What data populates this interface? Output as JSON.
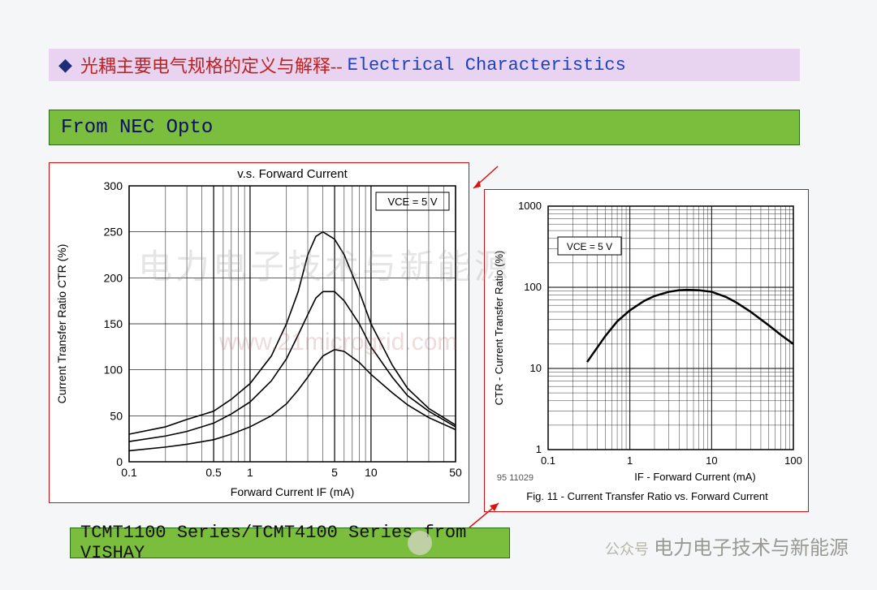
{
  "header": {
    "bullet": "◆",
    "cn": "光耦主要电气规格的定义与解释--",
    "en": "Electrical Characteristics"
  },
  "sourceBox1": "From NEC Opto",
  "sourceBox2": "TCMT1100 Series/TCMT4100 Series from VISHAY",
  "footerWatermark": "电力电子技术与新能源",
  "footerPrefix": "公众号",
  "chart1": {
    "type": "line-logx",
    "title": "v.s. Forward Current",
    "condition": "VCE = 5 V",
    "xlabel": "Forward Current  IF (mA)",
    "ylabel": "Current Transfer Ratio  CTR (%)",
    "xlim": [
      0.1,
      50
    ],
    "ylim": [
      0,
      300
    ],
    "ytick_step": 50,
    "xticks": [
      0.1,
      0.5,
      1,
      5,
      10,
      50
    ],
    "xminor": [
      0.2,
      0.3,
      0.4,
      0.6,
      0.7,
      0.8,
      0.9,
      2,
      3,
      4,
      6,
      7,
      8,
      9,
      20,
      30,
      40
    ],
    "yticks": [
      0,
      50,
      100,
      150,
      200,
      250,
      300
    ],
    "line_color": "#000000",
    "grid_color": "#000000",
    "background_color": "#ffffff",
    "label_fontsize": 14,
    "series": [
      [
        [
          0.1,
          30
        ],
        [
          0.2,
          38
        ],
        [
          0.3,
          46
        ],
        [
          0.5,
          55
        ],
        [
          0.7,
          68
        ],
        [
          1,
          85
        ],
        [
          1.5,
          115
        ],
        [
          2,
          150
        ],
        [
          2.5,
          185
        ],
        [
          3,
          225
        ],
        [
          3.5,
          245
        ],
        [
          4,
          250
        ],
        [
          5,
          242
        ],
        [
          6,
          225
        ],
        [
          8,
          185
        ],
        [
          10,
          150
        ],
        [
          15,
          105
        ],
        [
          20,
          80
        ],
        [
          30,
          58
        ],
        [
          50,
          40
        ]
      ],
      [
        [
          0.1,
          22
        ],
        [
          0.2,
          28
        ],
        [
          0.3,
          33
        ],
        [
          0.5,
          42
        ],
        [
          0.7,
          52
        ],
        [
          1,
          65
        ],
        [
          1.5,
          88
        ],
        [
          2,
          112
        ],
        [
          2.5,
          138
        ],
        [
          3,
          160
        ],
        [
          3.5,
          178
        ],
        [
          4,
          185
        ],
        [
          5,
          185
        ],
        [
          6,
          175
        ],
        [
          8,
          150
        ],
        [
          10,
          125
        ],
        [
          15,
          92
        ],
        [
          20,
          72
        ],
        [
          30,
          55
        ],
        [
          50,
          38
        ]
      ],
      [
        [
          0.1,
          12
        ],
        [
          0.2,
          16
        ],
        [
          0.3,
          19
        ],
        [
          0.5,
          24
        ],
        [
          0.7,
          30
        ],
        [
          1,
          38
        ],
        [
          1.5,
          50
        ],
        [
          2,
          63
        ],
        [
          2.5,
          78
        ],
        [
          3,
          92
        ],
        [
          3.5,
          105
        ],
        [
          4,
          115
        ],
        [
          5,
          122
        ],
        [
          6,
          120
        ],
        [
          8,
          108
        ],
        [
          10,
          95
        ],
        [
          15,
          75
        ],
        [
          20,
          62
        ],
        [
          30,
          48
        ],
        [
          50,
          35
        ]
      ]
    ]
  },
  "chart2": {
    "type": "line-loglog",
    "condition": "VCE = 5 V",
    "figLabel": "95 11029",
    "caption": "Fig. 11 - Current Transfer Ratio vs. Forward Current",
    "xlabel": "IF - Forward Current (mA)",
    "ylabel": "CTR - Current Transfer Ratio (%)",
    "xlim": [
      0.1,
      100
    ],
    "ylim": [
      1,
      1000
    ],
    "xticks": [
      0.1,
      1,
      10,
      100
    ],
    "yticks": [
      1,
      10,
      100,
      1000
    ],
    "line_color": "#000000",
    "line_width": 2.5,
    "grid_color": "#000000",
    "background_color": "#ffffff",
    "label_fontsize": 12,
    "series": [
      [
        0.3,
        12
      ],
      [
        0.5,
        25
      ],
      [
        0.7,
        38
      ],
      [
        1,
        52
      ],
      [
        1.5,
        68
      ],
      [
        2,
        78
      ],
      [
        3,
        88
      ],
      [
        4,
        92
      ],
      [
        5,
        93
      ],
      [
        7,
        92
      ],
      [
        10,
        88
      ],
      [
        15,
        76
      ],
      [
        20,
        65
      ],
      [
        30,
        50
      ],
      [
        50,
        34
      ],
      [
        70,
        26
      ],
      [
        100,
        20
      ]
    ]
  },
  "watermarkMain": "电力电子技术与新能源",
  "watermarkUrl": "www.21microgrid.com"
}
